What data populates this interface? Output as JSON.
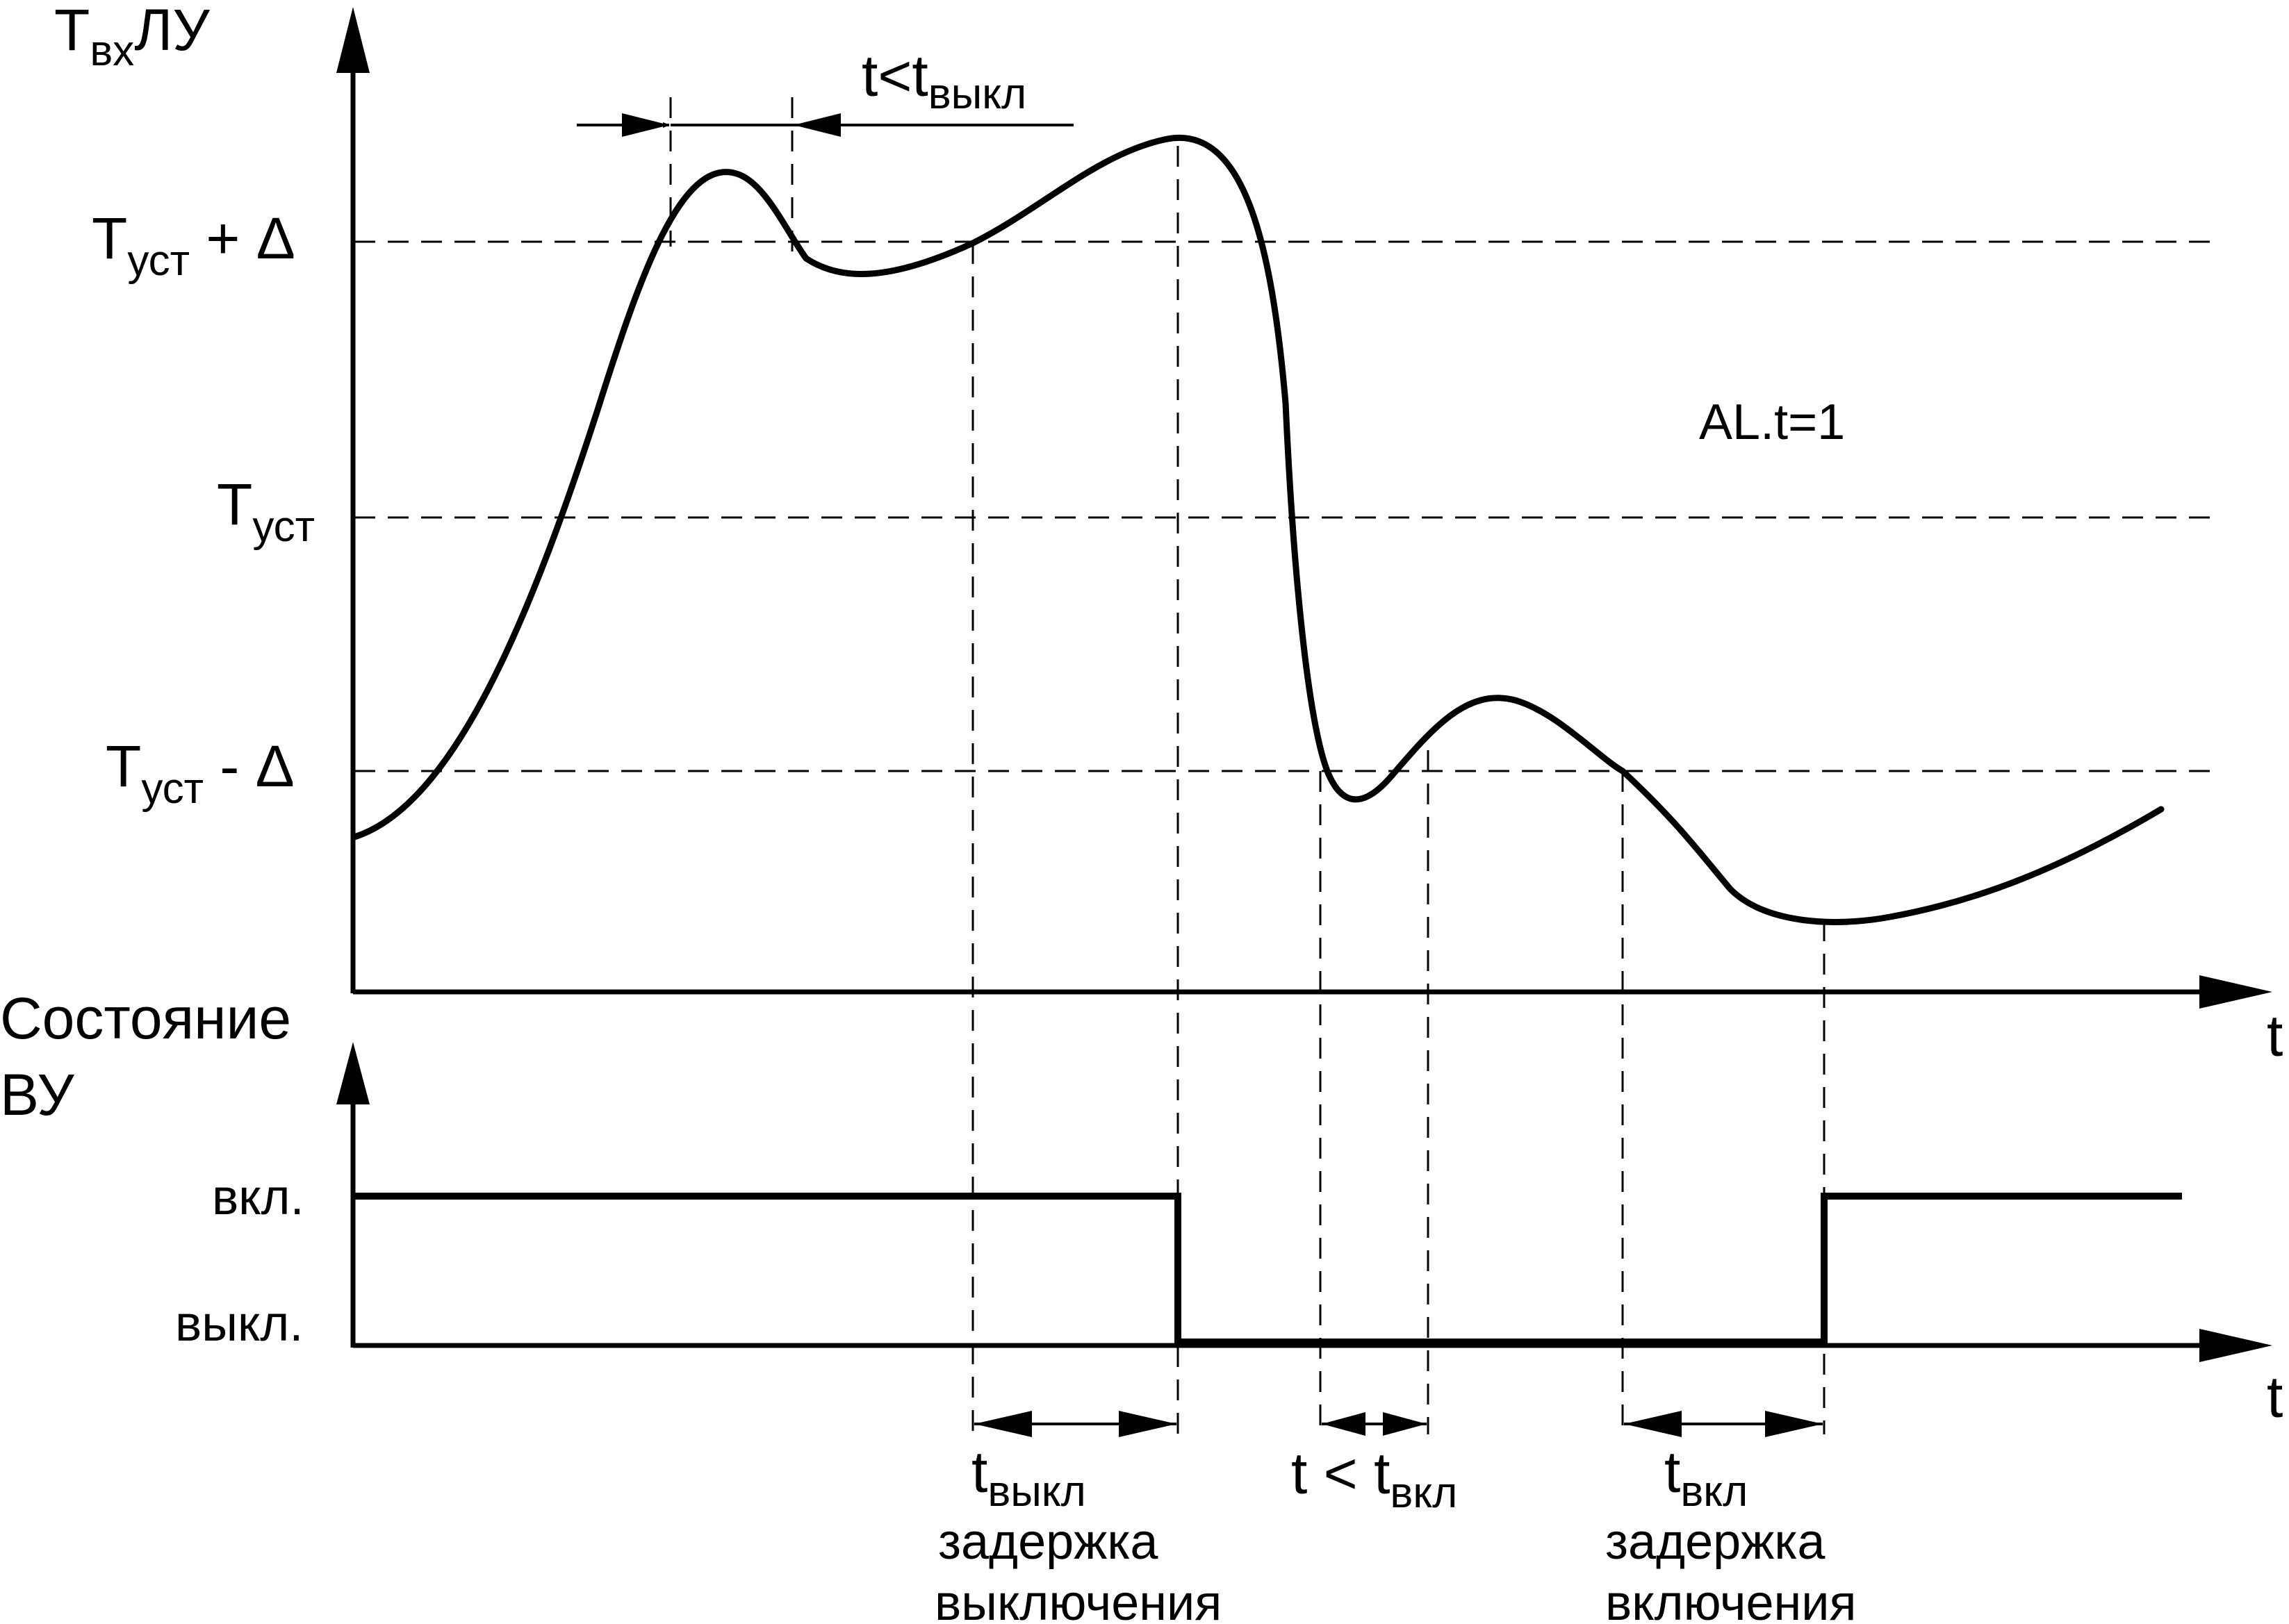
{
  "top_chart": {
    "y_axis_label_main": "T",
    "y_axis_label_sub": "вх",
    "y_axis_label_suffix": "ЛУ",
    "x_axis_label": "t",
    "mode_label": "AL.t=1",
    "levels": [
      {
        "main": "T",
        "sub": "уст",
        "suffix": " + Δ"
      },
      {
        "main": "T",
        "sub": "уст",
        "suffix": ""
      },
      {
        "main": "T",
        "sub": "уст",
        "suffix": " - Δ"
      }
    ],
    "top_interval": {
      "main": "t<t",
      "sub": "выкл"
    }
  },
  "bottom_chart": {
    "y_axis_label_line1": "Состояние",
    "y_axis_label_line2": "ВУ",
    "x_axis_label": "t",
    "level_on": "вкл.",
    "level_off": "выкл."
  },
  "annotations": {
    "off_delay": {
      "main": "t",
      "sub": "выкл",
      "line1": "задержка",
      "line2": "выключения"
    },
    "short_on": {
      "main": "t < t",
      "sub": "вкл"
    },
    "on_delay": {
      "main": "t",
      "sub": "вкл",
      "line1": "задержка",
      "line2": "включения"
    }
  }
}
